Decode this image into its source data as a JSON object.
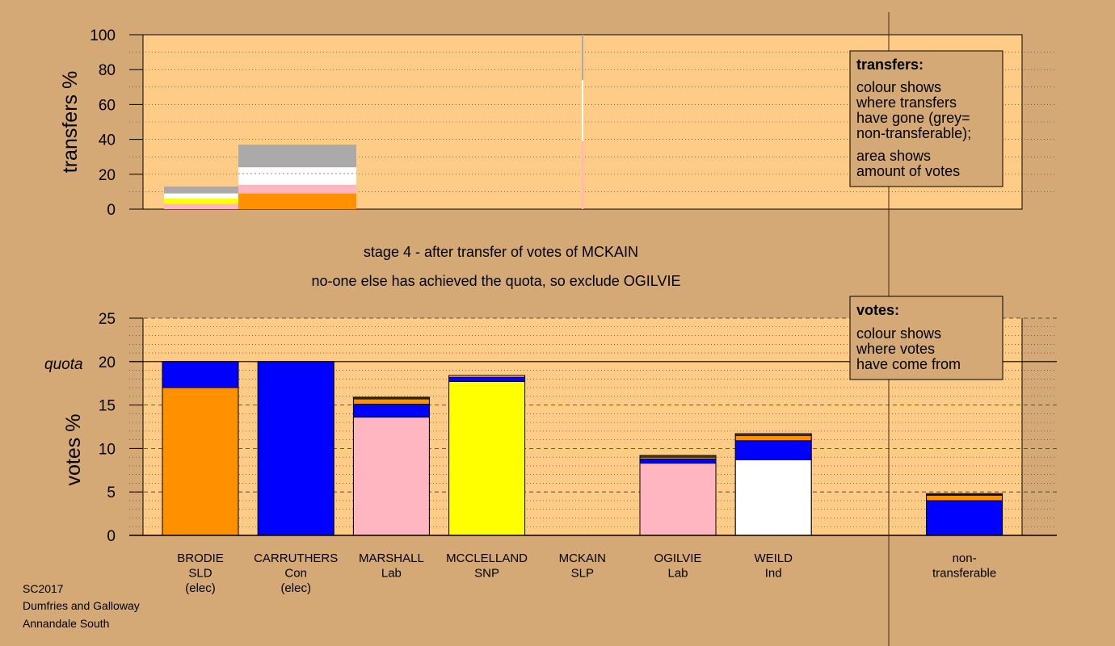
{
  "chart_data": [
    {
      "id": "transfers",
      "type": "bar",
      "ylabel": "transfers %",
      "ylim": [
        0,
        100
      ],
      "yticks": [
        0,
        20,
        40,
        60,
        80,
        100
      ],
      "grid": "dotted",
      "legend": {
        "title": "transfers:",
        "lines1": [
          "colour shows",
          "where transfers",
          "have gone (grey=",
          "non-transferable);"
        ],
        "lines2": [
          "area shows",
          "amount of votes"
        ]
      },
      "bars": [
        {
          "segments": [
            {
              "color": "#ffb6c1",
              "value": 3
            },
            {
              "color": "#ffff00",
              "value": 3
            },
            {
              "color": "#ffffff",
              "value": 3
            },
            {
              "color": "#aaaaaa",
              "value": 4
            }
          ]
        },
        {
          "segments": [
            {
              "color": "#ff9000",
              "value": 9
            },
            {
              "color": "#ffb6c1",
              "value": 5
            },
            {
              "color": "#ffffff",
              "value": 10
            },
            {
              "color": "#aaaaaa",
              "value": 13
            }
          ]
        },
        {
          "segments": [
            {
              "color": "#ffb6c1",
              "value": 39
            },
            {
              "color": "#ffffff",
              "value": 35
            },
            {
              "color": "#aaaaaa",
              "value": 26
            }
          ]
        }
      ]
    },
    {
      "id": "votes",
      "type": "bar",
      "ylabel": "votes %",
      "ylim": [
        0,
        25
      ],
      "yticks": [
        0,
        5,
        10,
        15,
        20,
        25
      ],
      "quota": 20,
      "quota_label": "quota",
      "grid": "dashed",
      "legend": {
        "title": "votes:",
        "lines1": [
          "colour shows",
          "where votes",
          "have come from"
        ]
      },
      "categories": [
        {
          "name": "BRODIE",
          "party": "SLD",
          "note": "(elec)"
        },
        {
          "name": "CARRUTHERS",
          "party": "Con",
          "note": "(elec)"
        },
        {
          "name": "MARSHALL",
          "party": "Lab",
          "note": ""
        },
        {
          "name": "MCCLELLAND",
          "party": "SNP",
          "note": ""
        },
        {
          "name": "MCKAIN",
          "party": "SLP",
          "note": ""
        },
        {
          "name": "OGILVIE",
          "party": "Lab",
          "note": ""
        },
        {
          "name": "WEILD",
          "party": "Ind",
          "note": ""
        },
        {
          "name": "",
          "party": "",
          "note": ""
        },
        {
          "name": "non-",
          "party": "transferable",
          "note": ""
        }
      ],
      "series": [
        {
          "color": "#ff9000",
          "values": [
            17.0,
            0,
            0,
            0,
            0,
            0,
            0,
            0,
            0
          ]
        },
        {
          "color": "#ffb6c1",
          "values": [
            0,
            0,
            13.6,
            0,
            0,
            8.3,
            0,
            0,
            0
          ]
        },
        {
          "color": "#ffff00",
          "values": [
            0,
            0,
            0,
            17.7,
            0,
            0,
            0,
            0,
            0
          ]
        },
        {
          "color": "#ffffff",
          "values": [
            0,
            0,
            0,
            0,
            0,
            0,
            8.7,
            0,
            0
          ]
        },
        {
          "color": "#0000ff",
          "values": [
            3.0,
            20.0,
            1.5,
            0.5,
            0,
            0.5,
            2.2,
            0,
            4.0
          ]
        },
        {
          "color": "#ff9000",
          "values": [
            0,
            0,
            0.6,
            0,
            0,
            0.2,
            0.6,
            0,
            0.6
          ]
        },
        {
          "color": "#ffb6c1",
          "values": [
            0,
            0,
            0.1,
            0.2,
            0,
            0.1,
            0.1,
            0,
            0.1
          ]
        },
        {
          "color": "#ffff00",
          "values": [
            0,
            0,
            0.1,
            0,
            0,
            0.1,
            0.1,
            0,
            0.1
          ]
        }
      ]
    }
  ],
  "stage_text": [
    "stage 4 - after transfer of votes of MCKAIN",
    "no-one else has achieved the quota, so exclude OGILVIE"
  ],
  "credit": [
    "SC2017",
    "Dumfries and Galloway",
    "Annandale South"
  ]
}
